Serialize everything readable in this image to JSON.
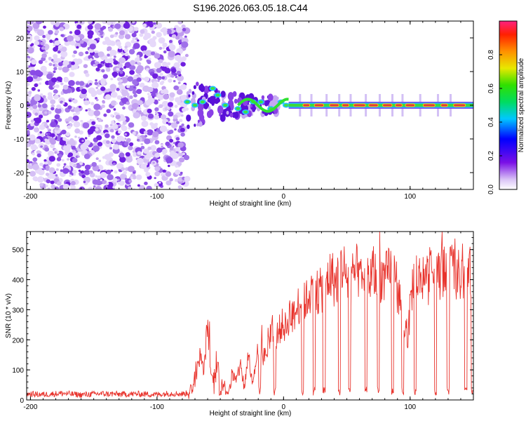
{
  "title": "S196.2026.063.05.18.C44",
  "colors": {
    "snr_line": "#e8332c",
    "stripe": "#2a2a2a",
    "band_core": "#e03a3a",
    "band_inner": "#ffd000",
    "band_outer": "#3cd83c",
    "noise_dark": "#6a10e0",
    "noise_light": "#d9c2f6"
  },
  "chart_data": [
    {
      "type": "heatmap",
      "name": "spectrogram",
      "xlabel": "Height of straight line (km)",
      "ylabel": "Frequency (Hz)",
      "xlim": [
        -203,
        150
      ],
      "ylim": [
        -25,
        25
      ],
      "xticks": [
        -200,
        -100,
        0,
        100
      ],
      "yticks": [
        -20,
        -10,
        0,
        10,
        20
      ],
      "noise_region_x": [
        -203,
        -76
      ],
      "tone_frequency_hz": 0,
      "tone_segments": [
        [
          15,
          21
        ],
        [
          24,
          32
        ],
        [
          36,
          44
        ],
        [
          46,
          52
        ],
        [
          55,
          65
        ],
        [
          67,
          75
        ],
        [
          78,
          86
        ],
        [
          88,
          94
        ],
        [
          96,
          104
        ],
        [
          110,
          120
        ],
        [
          124,
          130
        ],
        [
          134,
          144
        ]
      ],
      "colorbar": {
        "label": "Normalized spectral amplitude",
        "range": [
          0.0,
          1.0
        ],
        "ticks": [
          "0.0",
          "0.2",
          "0.4",
          "0.6",
          "0.8"
        ],
        "colormap": "rainbow (white-violet-blue-cyan-green-yellow-orange-red-magenta)"
      }
    },
    {
      "type": "line",
      "name": "snr",
      "xlabel": "Height of straight line (km)",
      "ylabel": "SNR (10 * v/v)",
      "xlim": [
        -203,
        150
      ],
      "ylim": [
        0,
        560
      ],
      "xticks": [
        -200,
        -100,
        0,
        100
      ],
      "yticks": [
        0,
        100,
        200,
        300,
        400,
        500
      ],
      "series": [
        {
          "name": "SNR",
          "x": [
            -203,
            -190,
            -175,
            -160,
            -145,
            -130,
            -115,
            -100,
            -90,
            -80,
            -75,
            -70,
            -66,
            -63,
            -60,
            -57,
            -55,
            -52,
            -49,
            -46,
            -43,
            -40,
            -37,
            -34,
            -31,
            -28,
            -25,
            -22,
            -19,
            -16,
            -13,
            -10,
            -7,
            -4,
            -1,
            2,
            5,
            8,
            11,
            14,
            17,
            20,
            23,
            26,
            29,
            32,
            35,
            38,
            41,
            44,
            47,
            50,
            53,
            56,
            59,
            62,
            65,
            68,
            71,
            74,
            77,
            80,
            83,
            86,
            89,
            92,
            95,
            98,
            101,
            104,
            107,
            110,
            113,
            116,
            119,
            122,
            125,
            128,
            131,
            134,
            137,
            140,
            143,
            146,
            150
          ],
          "values": [
            20,
            18,
            22,
            17,
            21,
            19,
            20,
            18,
            22,
            20,
            23,
            60,
            150,
            90,
            260,
            70,
            40,
            120,
            60,
            40,
            50,
            80,
            60,
            120,
            40,
            150,
            60,
            100,
            180,
            140,
            160,
            210,
            190,
            230,
            250,
            240,
            290,
            270,
            310,
            330,
            320,
            350,
            370,
            350,
            360,
            380,
            400,
            420,
            380,
            430,
            450,
            400,
            390,
            420,
            430,
            380,
            410,
            400,
            430,
            390,
            410,
            400,
            420,
            430,
            390,
            330,
            250,
            190,
            360,
            420,
            400,
            420,
            380,
            430,
            420,
            400,
            450,
            410,
            440,
            430,
            420,
            400,
            420,
            410,
            440
          ]
        }
      ],
      "dropouts_x": [
        -50,
        -44,
        -19,
        -7,
        15,
        24,
        32,
        44,
        52,
        65,
        75,
        86,
        94,
        104,
        120,
        130,
        144,
        149
      ]
    }
  ]
}
